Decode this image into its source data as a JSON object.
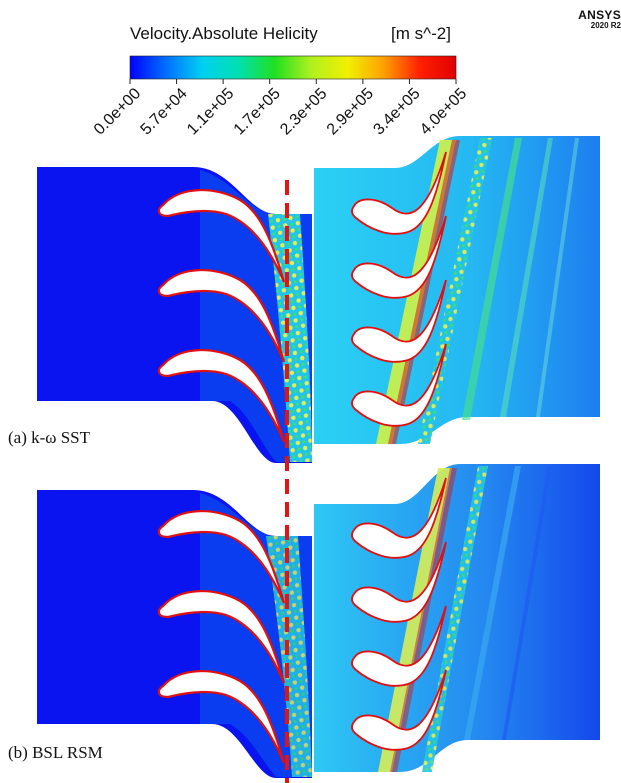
{
  "legend": {
    "title": "Velocity.Absolute Helicity",
    "unit": "[m s^-2]",
    "ticks": [
      "0.0e+00",
      "5.7e+04",
      "1.1e+05",
      "1.7e+05",
      "2.3e+05",
      "2.9e+05",
      "3.4e+05",
      "4.0e+05"
    ],
    "colors": [
      "#0000ff",
      "#0070ff",
      "#00d0f0",
      "#00e0b0",
      "#20e020",
      "#b0f020",
      "#f0f000",
      "#ffa000",
      "#ff2000",
      "#e00000"
    ]
  },
  "brand": {
    "name": "ANSYS",
    "version": "2020 R2"
  },
  "panels": [
    {
      "label": "(a) k-ω SST"
    },
    {
      "label": "(b) BSL RSM"
    }
  ],
  "colors": {
    "core_blue": "#0a14f0",
    "stator_field": "#0a3cf0",
    "rotor_field": "#26c8f2",
    "rotor_light": "#8ceaf8",
    "wake_green": "#3ce67a",
    "wake_yellow": "#e6f05a",
    "edge_red": "#e01010",
    "interface_dash": "#e41414"
  }
}
